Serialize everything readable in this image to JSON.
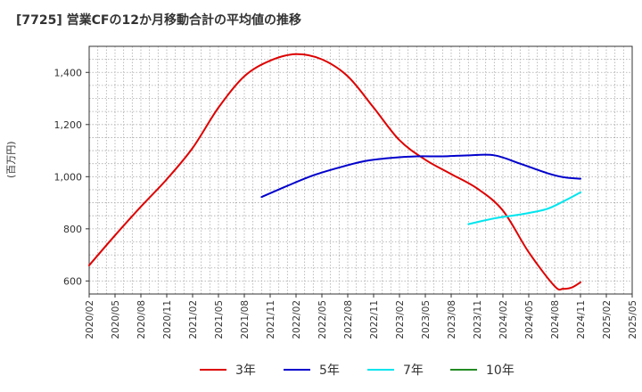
{
  "chart_data": {
    "type": "line",
    "title": "[7725]  営業CFの12か月移動合計の平均値の推移",
    "ylabel": "(百万円)",
    "xlabel": "",
    "ylim": [
      550,
      1500
    ],
    "yticks": [
      600,
      800,
      1000,
      1200,
      1400
    ],
    "ytick_labels": [
      "600",
      "800",
      "1,000",
      "1,200",
      "1,400"
    ],
    "x_tick_labels": [
      "2020/02",
      "2020/05",
      "2020/08",
      "2020/11",
      "2021/02",
      "2021/05",
      "2021/08",
      "2021/11",
      "2022/02",
      "2022/05",
      "2022/08",
      "2022/11",
      "2023/02",
      "2023/05",
      "2023/08",
      "2023/11",
      "2024/02",
      "2024/05",
      "2024/08",
      "2024/11",
      "2025/02",
      "2025/05"
    ],
    "grid": true,
    "legend_position": "bottom",
    "series": [
      {
        "name": "3年",
        "color": "#dd0000",
        "points": [
          [
            "2020/02",
            660
          ],
          [
            "2020/05",
            775
          ],
          [
            "2020/08",
            885
          ],
          [
            "2020/11",
            990
          ],
          [
            "2021/02",
            1110
          ],
          [
            "2021/05",
            1265
          ],
          [
            "2021/08",
            1385
          ],
          [
            "2021/11",
            1445
          ],
          [
            "2022/02",
            1470
          ],
          [
            "2022/05",
            1450
          ],
          [
            "2022/08",
            1385
          ],
          [
            "2022/11",
            1265
          ],
          [
            "2023/02",
            1140
          ],
          [
            "2023/05",
            1065
          ],
          [
            "2023/08",
            1010
          ],
          [
            "2023/11",
            955
          ],
          [
            "2024/02",
            870
          ],
          [
            "2024/05",
            710
          ],
          [
            "2024/08",
            580
          ],
          [
            "2024/09",
            570
          ],
          [
            "2024/10",
            575
          ],
          [
            "2024/11",
            595
          ]
        ]
      },
      {
        "name": "5年",
        "color": "#0000cc",
        "points": [
          [
            "2021/10",
            922
          ],
          [
            "2022/01",
            965
          ],
          [
            "2022/04",
            1005
          ],
          [
            "2022/07",
            1035
          ],
          [
            "2022/10",
            1060
          ],
          [
            "2023/01",
            1072
          ],
          [
            "2023/04",
            1078
          ],
          [
            "2023/07",
            1078
          ],
          [
            "2023/10",
            1082
          ],
          [
            "2024/01",
            1082
          ],
          [
            "2024/04",
            1050
          ],
          [
            "2024/07",
            1015
          ],
          [
            "2024/09",
            998
          ],
          [
            "2024/11",
            992
          ]
        ]
      },
      {
        "name": "7年",
        "color": "#00e5ee",
        "points": [
          [
            "2023/10",
            818
          ],
          [
            "2024/01",
            840
          ],
          [
            "2024/04",
            855
          ],
          [
            "2024/07",
            875
          ],
          [
            "2024/09",
            905
          ],
          [
            "2024/11",
            940
          ]
        ]
      },
      {
        "name": "10年",
        "color": "#228b22",
        "points": []
      }
    ]
  }
}
